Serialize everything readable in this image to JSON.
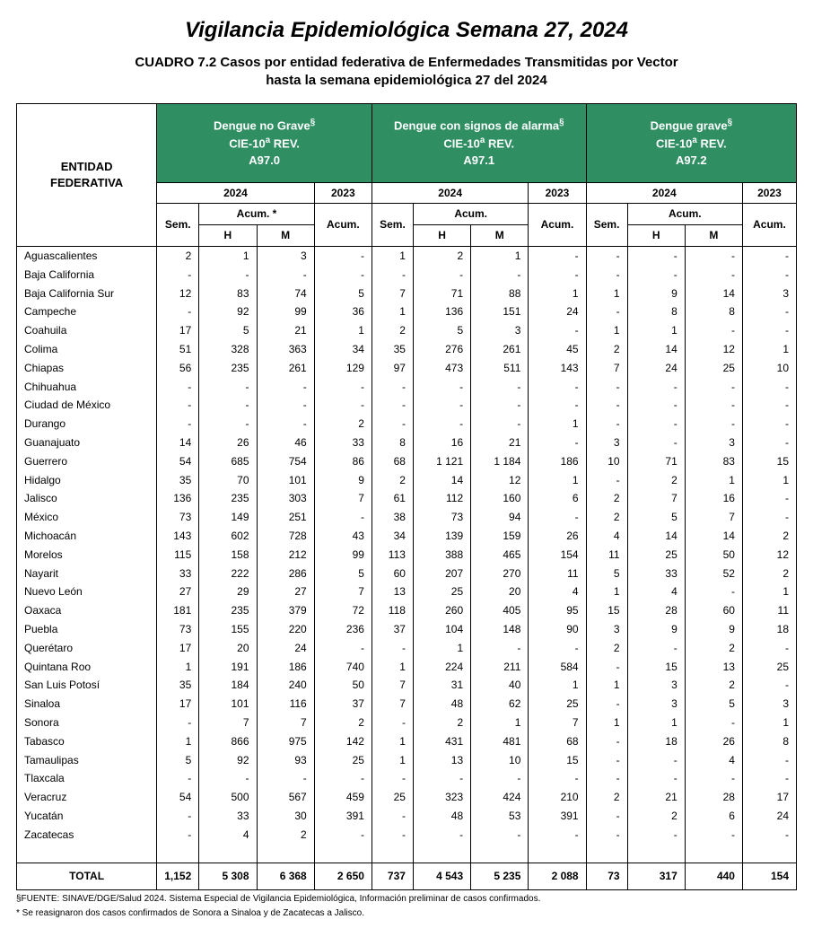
{
  "title": "Vigilancia Epidemiológica Semana  27,  2024",
  "subtitle_l1": "CUADRO 7.2  Casos por entidad  federativa de Enfermedades Transmitidas por Vector",
  "subtitle_l2": "hasta la semana epidemiológica 27 del 2024",
  "entity_header": "ENTIDAD FEDERATIVA",
  "groups": [
    {
      "title_html": "Dengue no Grave<sup>&sect;</sup><br>CIE-10<sup>a</sup> REV.<br>A97.0",
      "acum_label": "Acum. *"
    },
    {
      "title_html": "Dengue con signos de alarma<sup>&sect;</sup><br>CIE-10<sup>a</sup> REV.<br>A97.1",
      "acum_label": "Acum."
    },
    {
      "title_html": "Dengue grave<sup>&sect;</sup><br>CIE-10<sup>a</sup> REV.<br>A97.2",
      "acum_label": "Acum."
    }
  ],
  "sub": {
    "y2024": "2024",
    "y2023": "2023",
    "sem": "Sem.",
    "h": "H",
    "m": "M",
    "acum": "Acum."
  },
  "rows": [
    {
      "e": "Aguascalientes",
      "v": [
        "2",
        "1",
        "3",
        "-",
        "1",
        "2",
        "1",
        "-",
        "-",
        "-",
        "-",
        "-"
      ]
    },
    {
      "e": "Baja California",
      "v": [
        "-",
        "-",
        "-",
        "-",
        "-",
        "-",
        "-",
        "-",
        "-",
        "-",
        "-",
        "-"
      ]
    },
    {
      "e": "Baja California Sur",
      "v": [
        "12",
        "83",
        "74",
        "5",
        "7",
        "71",
        "88",
        "1",
        "1",
        "9",
        "14",
        "3"
      ]
    },
    {
      "e": "Campeche",
      "v": [
        "-",
        "92",
        "99",
        "36",
        "1",
        "136",
        "151",
        "24",
        "-",
        "8",
        "8",
        "-"
      ]
    },
    {
      "e": "Coahuila",
      "v": [
        "17",
        "5",
        "21",
        "1",
        "2",
        "5",
        "3",
        "-",
        "1",
        "1",
        "-",
        "-"
      ]
    },
    {
      "e": "Colima",
      "v": [
        "51",
        "328",
        "363",
        "34",
        "35",
        "276",
        "261",
        "45",
        "2",
        "14",
        "12",
        "1"
      ]
    },
    {
      "e": "Chiapas",
      "v": [
        "56",
        "235",
        "261",
        "129",
        "97",
        "473",
        "511",
        "143",
        "7",
        "24",
        "25",
        "10"
      ]
    },
    {
      "e": "Chihuahua",
      "v": [
        "-",
        "-",
        "-",
        "-",
        "-",
        "-",
        "-",
        "-",
        "-",
        "-",
        "-",
        "-"
      ]
    },
    {
      "e": "Ciudad de México",
      "v": [
        "-",
        "-",
        "-",
        "-",
        "-",
        "-",
        "-",
        "-",
        "-",
        "-",
        "-",
        "-"
      ]
    },
    {
      "e": "Durango",
      "v": [
        "-",
        "-",
        "-",
        "2",
        "-",
        "-",
        "-",
        "1",
        "-",
        "-",
        "-",
        "-"
      ]
    },
    {
      "e": "Guanajuato",
      "v": [
        "14",
        "26",
        "46",
        "33",
        "8",
        "16",
        "21",
        "-",
        "3",
        "-",
        "3",
        "-"
      ]
    },
    {
      "e": "Guerrero",
      "v": [
        "54",
        "685",
        "754",
        "86",
        "68",
        "1 121",
        "1 184",
        "186",
        "10",
        "71",
        "83",
        "15"
      ]
    },
    {
      "e": "Hidalgo",
      "v": [
        "35",
        "70",
        "101",
        "9",
        "2",
        "14",
        "12",
        "1",
        "-",
        "2",
        "1",
        "1"
      ]
    },
    {
      "e": "Jalisco",
      "v": [
        "136",
        "235",
        "303",
        "7",
        "61",
        "112",
        "160",
        "6",
        "2",
        "7",
        "16",
        "-"
      ]
    },
    {
      "e": "México",
      "v": [
        "73",
        "149",
        "251",
        "-",
        "38",
        "73",
        "94",
        "-",
        "2",
        "5",
        "7",
        "-"
      ]
    },
    {
      "e": "Michoacán",
      "v": [
        "143",
        "602",
        "728",
        "43",
        "34",
        "139",
        "159",
        "26",
        "4",
        "14",
        "14",
        "2"
      ]
    },
    {
      "e": "Morelos",
      "v": [
        "115",
        "158",
        "212",
        "99",
        "113",
        "388",
        "465",
        "154",
        "11",
        "25",
        "50",
        "12"
      ]
    },
    {
      "e": "Nayarit",
      "v": [
        "33",
        "222",
        "286",
        "5",
        "60",
        "207",
        "270",
        "11",
        "5",
        "33",
        "52",
        "2"
      ]
    },
    {
      "e": "Nuevo León",
      "v": [
        "27",
        "29",
        "27",
        "7",
        "13",
        "25",
        "20",
        "4",
        "1",
        "4",
        "-",
        "1"
      ]
    },
    {
      "e": "Oaxaca",
      "v": [
        "181",
        "235",
        "379",
        "72",
        "118",
        "260",
        "405",
        "95",
        "15",
        "28",
        "60",
        "11"
      ]
    },
    {
      "e": "Puebla",
      "v": [
        "73",
        "155",
        "220",
        "236",
        "37",
        "104",
        "148",
        "90",
        "3",
        "9",
        "9",
        "18"
      ]
    },
    {
      "e": "Querétaro",
      "v": [
        "17",
        "20",
        "24",
        "-",
        "-",
        "1",
        "-",
        "-",
        "2",
        "-",
        "2",
        "-"
      ]
    },
    {
      "e": "Quintana Roo",
      "v": [
        "1",
        "191",
        "186",
        "740",
        "1",
        "224",
        "211",
        "584",
        "-",
        "15",
        "13",
        "25"
      ]
    },
    {
      "e": "San Luis Potosí",
      "v": [
        "35",
        "184",
        "240",
        "50",
        "7",
        "31",
        "40",
        "1",
        "1",
        "3",
        "2",
        "-"
      ]
    },
    {
      "e": "Sinaloa",
      "v": [
        "17",
        "101",
        "116",
        "37",
        "7",
        "48",
        "62",
        "25",
        "-",
        "3",
        "5",
        "3"
      ]
    },
    {
      "e": "Sonora",
      "v": [
        "-",
        "7",
        "7",
        "2",
        "-",
        "2",
        "1",
        "7",
        "1",
        "1",
        "-",
        "1"
      ]
    },
    {
      "e": "Tabasco",
      "v": [
        "1",
        "866",
        "975",
        "142",
        "1",
        "431",
        "481",
        "68",
        "-",
        "18",
        "26",
        "8"
      ]
    },
    {
      "e": "Tamaulipas",
      "v": [
        "5",
        "92",
        "93",
        "25",
        "1",
        "13",
        "10",
        "15",
        "-",
        "-",
        "4",
        "-"
      ]
    },
    {
      "e": "Tlaxcala",
      "v": [
        "-",
        "-",
        "-",
        "-",
        "-",
        "-",
        "-",
        "-",
        "-",
        "-",
        "-",
        "-"
      ]
    },
    {
      "e": "Veracruz",
      "v": [
        "54",
        "500",
        "567",
        "459",
        "25",
        "323",
        "424",
        "210",
        "2",
        "21",
        "28",
        "17"
      ]
    },
    {
      "e": "Yucatán",
      "v": [
        "-",
        "33",
        "30",
        "391",
        "-",
        "48",
        "53",
        "391",
        "-",
        "2",
        "6",
        "24"
      ]
    },
    {
      "e": "Zacatecas",
      "v": [
        "-",
        "4",
        "2",
        "-",
        "-",
        "-",
        "-",
        "-",
        "-",
        "-",
        "-",
        "-"
      ]
    }
  ],
  "total": {
    "label": "TOTAL",
    "v": [
      "1,152",
      "5 308",
      "6 368",
      "2 650",
      "737",
      "4 543",
      "5 235",
      "2 088",
      "73",
      "317",
      "440",
      "154"
    ]
  },
  "footnotes": [
    "§FUENTE: SINAVE/DGE/Salud 2024. Sistema Especial de Vigilancia Epidemiológica, Información preliminar de casos confirmados.",
    "* Se reasignaron dos casos confirmados de Sonora a Sinaloa y de Zacatecas a Jalisco."
  ],
  "styling": {
    "group_bg": "#2f8f63",
    "group_fg": "#ffffff",
    "title_fontsize": 24,
    "subtitle_fontsize": 15,
    "table_fontsize": 12,
    "footnote_fontsize": 10,
    "border_color": "#000000"
  },
  "col_widths_pct": [
    18,
    5.3,
    7.4,
    7.4,
    7.4,
    5.3,
    7.4,
    7.4,
    7.4,
    5.3,
    7.4,
    7.4,
    7.4
  ]
}
